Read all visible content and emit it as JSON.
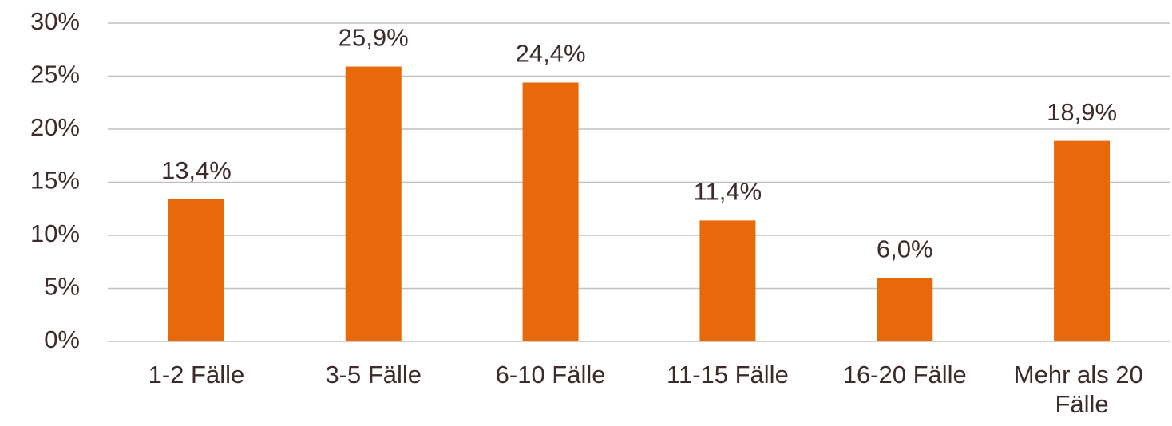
{
  "chart_data": {
    "type": "bar",
    "categories": [
      "1-2 Fälle",
      "3-5 Fälle",
      "6-10 Fälle",
      "11-15 Fälle",
      "16-20 Fälle",
      "Mehr als 20 Fälle"
    ],
    "values": [
      13.4,
      25.9,
      24.4,
      11.4,
      6.0,
      18.9
    ],
    "value_labels": [
      "13,4%",
      "25,9%",
      "24,4%",
      "11,4%",
      "6,0%",
      "18,9%"
    ],
    "color": "#e8690a",
    "ylim": [
      0,
      30
    ],
    "yticks": [
      {
        "value": 0,
        "label": "0%"
      },
      {
        "value": 5,
        "label": "5%"
      },
      {
        "value": 10,
        "label": "10%"
      },
      {
        "value": 15,
        "label": "15%"
      },
      {
        "value": 20,
        "label": "20%"
      },
      {
        "value": 25,
        "label": "25%"
      },
      {
        "value": 30,
        "label": "30%"
      }
    ],
    "grid": true
  }
}
